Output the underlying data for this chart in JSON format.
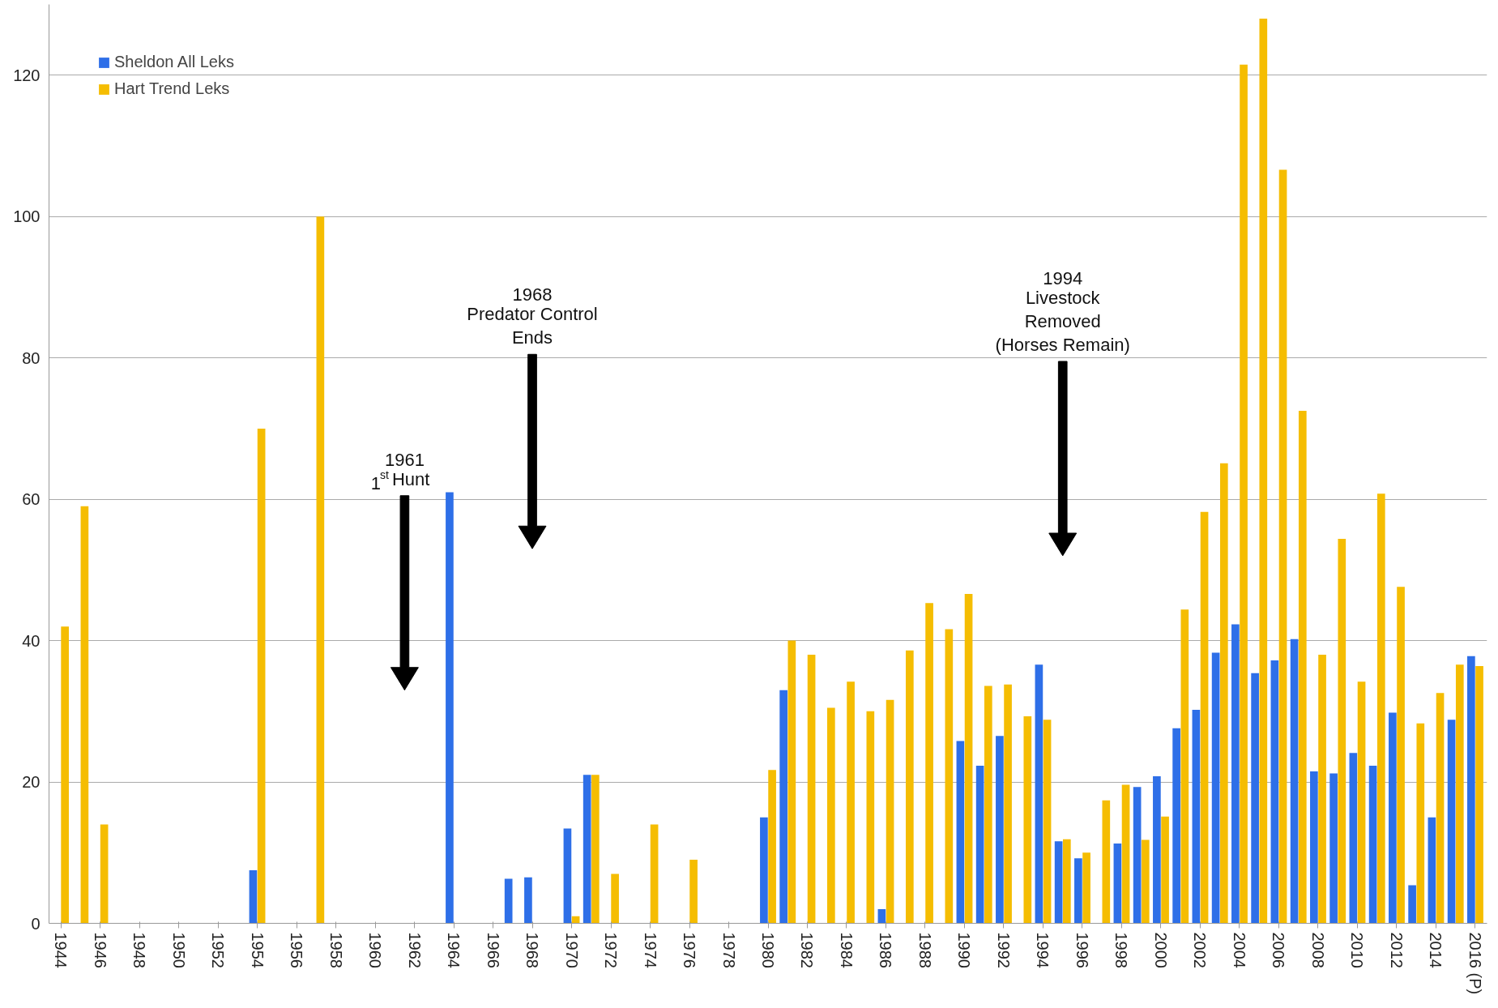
{
  "chart_data": {
    "type": "bar",
    "x": [
      1944,
      1945,
      1946,
      1947,
      1948,
      1949,
      1950,
      1951,
      1952,
      1953,
      1954,
      1955,
      1956,
      1957,
      1958,
      1959,
      1960,
      1961,
      1962,
      1963,
      1964,
      1965,
      1966,
      1967,
      1968,
      1969,
      1970,
      1971,
      1972,
      1973,
      1974,
      1975,
      1976,
      1977,
      1978,
      1979,
      1980,
      1981,
      1982,
      1983,
      1984,
      1985,
      1986,
      1987,
      1988,
      1989,
      1990,
      1991,
      1992,
      1993,
      1994,
      1995,
      1996,
      1997,
      1998,
      1999,
      2000,
      2001,
      2002,
      2003,
      2004,
      2005,
      2006,
      2007,
      2008,
      2009,
      2010,
      2011,
      2012,
      2013,
      2014,
      2015,
      2016
    ],
    "series": [
      {
        "name": "Sheldon All Leks",
        "color": "#2e6fe8",
        "values": [
          null,
          null,
          null,
          null,
          null,
          null,
          null,
          null,
          null,
          null,
          7.5,
          null,
          null,
          null,
          null,
          null,
          null,
          null,
          null,
          null,
          61,
          null,
          null,
          6.3,
          6.5,
          null,
          13.4,
          21,
          null,
          null,
          null,
          null,
          null,
          null,
          null,
          null,
          15,
          33,
          null,
          null,
          null,
          null,
          2,
          null,
          null,
          null,
          25.8,
          22.3,
          26.5,
          null,
          36.6,
          11.6,
          9.2,
          null,
          11.3,
          19.3,
          20.8,
          27.6,
          30.2,
          38.3,
          42.3,
          35.4,
          37.2,
          40.2,
          21.5,
          21.2,
          24.1,
          22.3,
          29.8,
          5.4,
          15,
          28.8,
          37.8
        ]
      },
      {
        "name": "Hart Trend Leks",
        "color": "#f5bd02",
        "values": [
          42,
          59,
          14,
          null,
          null,
          null,
          null,
          null,
          null,
          null,
          70,
          null,
          null,
          100,
          null,
          null,
          null,
          null,
          null,
          null,
          null,
          null,
          null,
          null,
          null,
          null,
          1,
          21,
          7,
          null,
          14,
          null,
          9,
          null,
          null,
          null,
          21.7,
          40,
          38,
          30.5,
          34.2,
          30,
          31.6,
          38.6,
          45.3,
          41.6,
          46.6,
          33.6,
          33.8,
          29.3,
          28.8,
          11.9,
          10,
          17.4,
          19.6,
          11.8,
          15.1,
          44.4,
          58.2,
          65.1,
          121.5,
          128,
          106.6,
          72.5,
          38,
          54.4,
          34.2,
          60.8,
          47.6,
          28.3,
          32.6,
          36.6,
          36.4
        ]
      }
    ],
    "xlim": [
      1943.4,
      2016.6
    ],
    "xticks": [
      1944,
      1946,
      1948,
      1950,
      1952,
      1954,
      1956,
      1958,
      1960,
      1962,
      1964,
      1966,
      1968,
      1970,
      1972,
      1974,
      1976,
      1978,
      1980,
      1982,
      1984,
      1986,
      1988,
      1990,
      1992,
      1994,
      1996,
      1998,
      2000,
      2002,
      2004,
      2006,
      2008,
      2010,
      2012,
      2014,
      {
        "value": 2016,
        "label": "2016 (P)"
      }
    ],
    "ylim": [
      0,
      130
    ],
    "yticks": [
      0,
      20,
      40,
      60,
      80,
      100,
      120
    ],
    "grid": "y",
    "legend": "top left",
    "annotations": [
      "1961\n1$^{st}$ Hunt",
      "1968\nPredator Control\nEnds",
      "1994\nLivestock\nRemoved\n(Horses Remain)"
    ]
  }
}
